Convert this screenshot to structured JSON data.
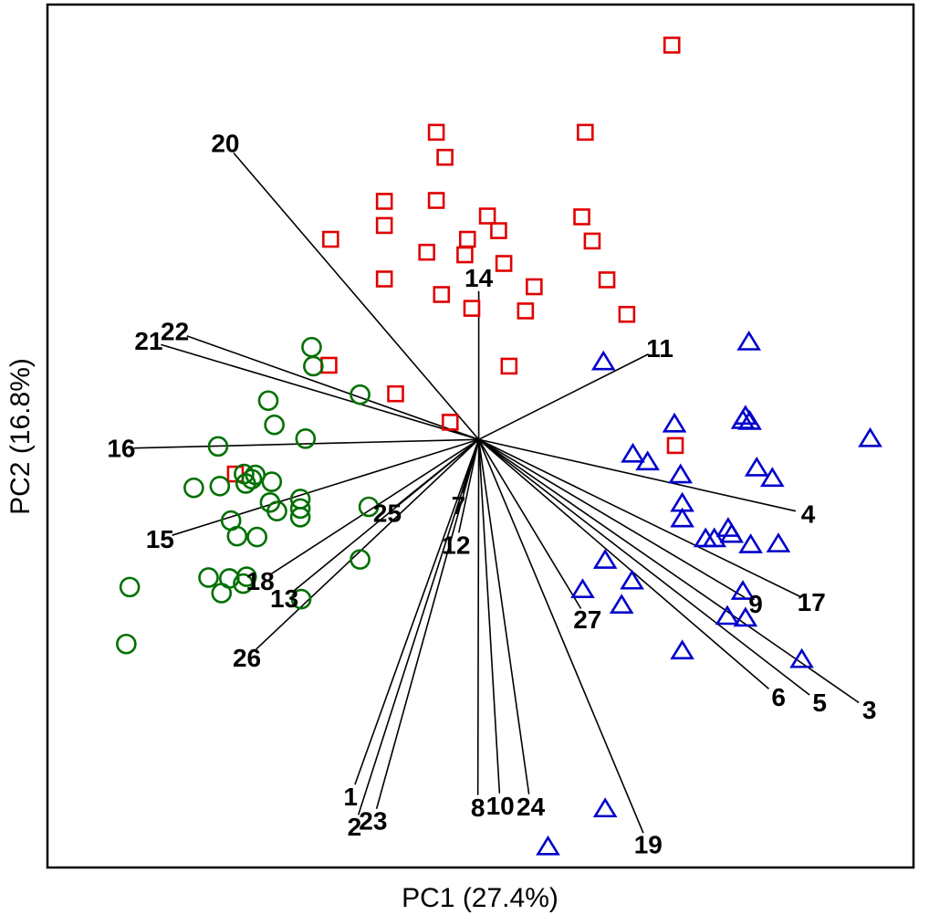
{
  "chart_data": {
    "type": "scatter",
    "subtype": "biplot",
    "xlabel": "PC1 (27.4%)",
    "ylabel": "PC2 (16.8%)",
    "xlim": [
      0,
      1000
    ],
    "ylim": [
      0,
      1000
    ],
    "ticks": "none",
    "grid": false,
    "origin": [
      498,
      496
    ],
    "series": [
      {
        "marker": "square",
        "color": "#e00000",
        "points": [
          [
            721,
            953
          ],
          [
            449,
            852
          ],
          [
            621,
            852
          ],
          [
            459,
            823
          ],
          [
            389,
            772
          ],
          [
            449,
            773
          ],
          [
            389,
            744
          ],
          [
            508,
            755
          ],
          [
            617,
            754
          ],
          [
            327,
            728
          ],
          [
            438,
            713
          ],
          [
            485,
            728
          ],
          [
            521,
            738
          ],
          [
            629,
            726
          ],
          [
            482,
            710
          ],
          [
            527,
            700
          ],
          [
            389,
            682
          ],
          [
            455,
            664
          ],
          [
            562,
            673
          ],
          [
            646,
            681
          ],
          [
            490,
            648
          ],
          [
            552,
            645
          ],
          [
            669,
            641
          ],
          [
            325,
            582
          ],
          [
            533,
            581
          ],
          [
            402,
            549
          ],
          [
            465,
            516
          ],
          [
            725,
            489
          ],
          [
            217,
            456
          ]
        ]
      },
      {
        "marker": "circle",
        "color": "#007000",
        "points": [
          [
            305,
            603
          ],
          [
            307,
            581
          ],
          [
            361,
            548
          ],
          [
            255,
            541
          ],
          [
            262,
            513
          ],
          [
            298,
            497
          ],
          [
            197,
            488
          ],
          [
            227,
            456
          ],
          [
            240,
            455
          ],
          [
            169,
            440
          ],
          [
            199,
            442
          ],
          [
            229,
            445
          ],
          [
            236,
            450
          ],
          [
            259,
            447
          ],
          [
            292,
            427
          ],
          [
            257,
            423
          ],
          [
            265,
            413
          ],
          [
            292,
            416
          ],
          [
            292,
            406
          ],
          [
            371,
            418
          ],
          [
            212,
            402
          ],
          [
            219,
            384
          ],
          [
            242,
            383
          ],
          [
            361,
            357
          ],
          [
            186,
            336
          ],
          [
            210,
            335
          ],
          [
            226,
            329
          ],
          [
            230,
            337
          ],
          [
            201,
            318
          ],
          [
            95,
            325
          ],
          [
            293,
            311
          ],
          [
            91,
            259
          ]
        ]
      },
      {
        "marker": "triangle",
        "color": "#0000cc",
        "points": [
          [
            810,
            609
          ],
          [
            642,
            586
          ],
          [
            724,
            514
          ],
          [
            803,
            518
          ],
          [
            806,
            523
          ],
          [
            811,
            517
          ],
          [
            950,
            497
          ],
          [
            676,
            479
          ],
          [
            693,
            470
          ],
          [
            731,
            455
          ],
          [
            819,
            463
          ],
          [
            837,
            451
          ],
          [
            733,
            422
          ],
          [
            733,
            404
          ],
          [
            786,
            393
          ],
          [
            760,
            381
          ],
          [
            770,
            381
          ],
          [
            790,
            386
          ],
          [
            812,
            374
          ],
          [
            844,
            375
          ],
          [
            644,
            356
          ],
          [
            675,
            332
          ],
          [
            618,
            322
          ],
          [
            663,
            304
          ],
          [
            803,
            320
          ],
          [
            785,
            291
          ],
          [
            806,
            289
          ],
          [
            871,
            241
          ],
          [
            733,
            251
          ],
          [
            644,
            68
          ],
          [
            578,
            24
          ]
        ]
      }
    ],
    "vectors": [
      {
        "label": "1",
        "end": [
          355,
          96
        ]
      },
      {
        "label": "2",
        "end": [
          359,
          61
        ]
      },
      {
        "label": "3",
        "end": [
          937,
          191
        ]
      },
      {
        "label": "4",
        "end": [
          864,
          413
        ]
      },
      {
        "label": "5",
        "end": [
          880,
          200
        ]
      },
      {
        "label": "6",
        "end": [
          833,
          207
        ]
      },
      {
        "label": "7",
        "end": [
          479,
          434
        ]
      },
      {
        "label": "8",
        "end": [
          497,
          84
        ]
      },
      {
        "label": "9",
        "end": [
          805,
          313
        ]
      },
      {
        "label": "10",
        "end": [
          522,
          86
        ]
      },
      {
        "label": "11",
        "end": [
          694,
          595
        ]
      },
      {
        "label": "12",
        "end": [
          475,
          388
        ]
      },
      {
        "label": "13",
        "end": [
          285,
          321
        ]
      },
      {
        "label": "14",
        "end": [
          498,
          668
        ]
      },
      {
        "label": "15",
        "end": [
          144,
          385
        ]
      },
      {
        "label": "16",
        "end": [
          100,
          486
        ]
      },
      {
        "label": "17",
        "end": [
          869,
          314
        ]
      },
      {
        "label": "18",
        "end": [
          258,
          340
        ]
      },
      {
        "label": "19",
        "end": [
          688,
          40
        ]
      },
      {
        "label": "20",
        "end": [
          215,
          828
        ]
      },
      {
        "label": "21",
        "end": [
          131,
          606
        ]
      },
      {
        "label": "22",
        "end": [
          161,
          616
        ]
      },
      {
        "label": "23",
        "end": [
          380,
          68
        ]
      },
      {
        "label": "24",
        "end": [
          556,
          85
        ]
      },
      {
        "label": "25",
        "end": [
          404,
          420
        ]
      },
      {
        "label": "26",
        "end": [
          241,
          253
        ]
      },
      {
        "label": "27",
        "end": [
          616,
          300
        ]
      }
    ]
  }
}
